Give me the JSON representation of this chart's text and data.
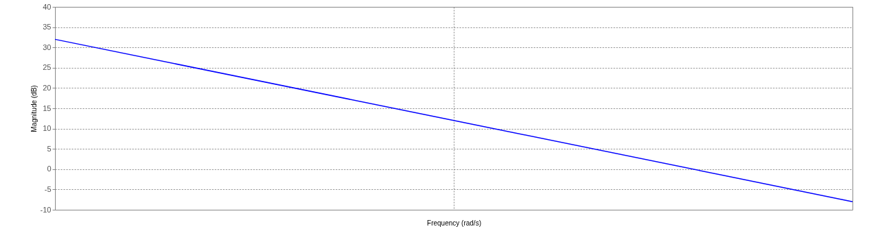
{
  "chart_data": {
    "type": "line",
    "xlabel": "Frequency  (rad/s)",
    "ylabel": "Magnitude (dB)",
    "categories": [
      null,
      null,
      null
    ],
    "series": [
      {
        "color": "#0000ff",
        "values": [
          32,
          12,
          -8
        ]
      }
    ],
    "ylim": [
      -10,
      40
    ],
    "yticks": [
      -10,
      -5,
      0,
      5,
      10,
      15,
      20,
      25,
      30,
      35,
      40
    ],
    "grid": true,
    "tick_labels": "y",
    "line_style": "solid",
    "marker": "none",
    "legend": false
  }
}
